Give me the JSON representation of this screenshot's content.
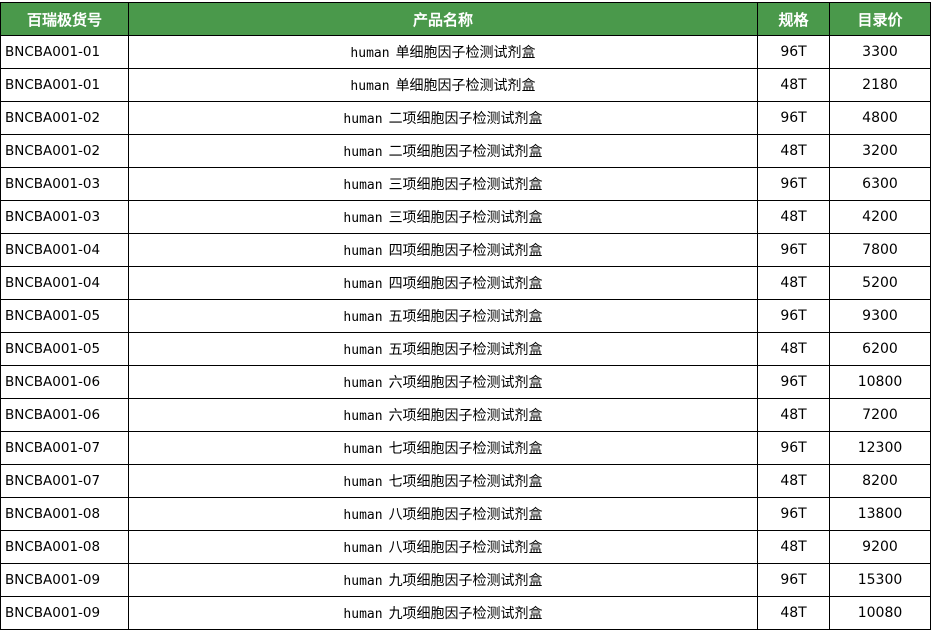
{
  "table": {
    "headers": [
      "百瑞极货号",
      "产品名称",
      "规格",
      "目录价"
    ],
    "header_color": "#4a994b",
    "rows": [
      {
        "sku": "BNCBA001-01",
        "species": "human",
        "name": "单细胞因子检测试剂盒",
        "spec": "96T",
        "price": "3300"
      },
      {
        "sku": "BNCBA001-01",
        "species": "human",
        "name": "单细胞因子检测试剂盒",
        "spec": "48T",
        "price": "2180"
      },
      {
        "sku": "BNCBA001-02",
        "species": "human",
        "name": "二项细胞因子检测试剂盒",
        "spec": "96T",
        "price": "4800"
      },
      {
        "sku": "BNCBA001-02",
        "species": "human",
        "name": "二项细胞因子检测试剂盒",
        "spec": "48T",
        "price": "3200"
      },
      {
        "sku": "BNCBA001-03",
        "species": "human",
        "name": "三项细胞因子检测试剂盒",
        "spec": "96T",
        "price": "6300"
      },
      {
        "sku": "BNCBA001-03",
        "species": "human",
        "name": "三项细胞因子检测试剂盒",
        "spec": "48T",
        "price": "4200"
      },
      {
        "sku": "BNCBA001-04",
        "species": "human",
        "name": "四项细胞因子检测试剂盒",
        "spec": "96T",
        "price": "7800"
      },
      {
        "sku": "BNCBA001-04",
        "species": "human",
        "name": "四项细胞因子检测试剂盒",
        "spec": "48T",
        "price": "5200"
      },
      {
        "sku": "BNCBA001-05",
        "species": "human",
        "name": "五项细胞因子检测试剂盒",
        "spec": "96T",
        "price": "9300"
      },
      {
        "sku": "BNCBA001-05",
        "species": "human",
        "name": "五项细胞因子检测试剂盒",
        "spec": "48T",
        "price": "6200"
      },
      {
        "sku": "BNCBA001-06",
        "species": "human",
        "name": "六项细胞因子检测试剂盒",
        "spec": "96T",
        "price": "10800"
      },
      {
        "sku": "BNCBA001-06",
        "species": "human",
        "name": "六项细胞因子检测试剂盒",
        "spec": "48T",
        "price": "7200"
      },
      {
        "sku": "BNCBA001-07",
        "species": "human",
        "name": "七项细胞因子检测试剂盒",
        "spec": "96T",
        "price": "12300"
      },
      {
        "sku": "BNCBA001-07",
        "species": "human",
        "name": "七项细胞因子检测试剂盒",
        "spec": "48T",
        "price": "8200"
      },
      {
        "sku": "BNCBA001-08",
        "species": "human",
        "name": "八项细胞因子检测试剂盒",
        "spec": "96T",
        "price": "13800"
      },
      {
        "sku": "BNCBA001-08",
        "species": "human",
        "name": "八项细胞因子检测试剂盒",
        "spec": "48T",
        "price": "9200"
      },
      {
        "sku": "BNCBA001-09",
        "species": "human",
        "name": "九项细胞因子检测试剂盒",
        "spec": "96T",
        "price": "15300"
      },
      {
        "sku": "BNCBA001-09",
        "species": "human",
        "name": "九项细胞因子检测试剂盒",
        "spec": "48T",
        "price": "10080"
      }
    ]
  }
}
